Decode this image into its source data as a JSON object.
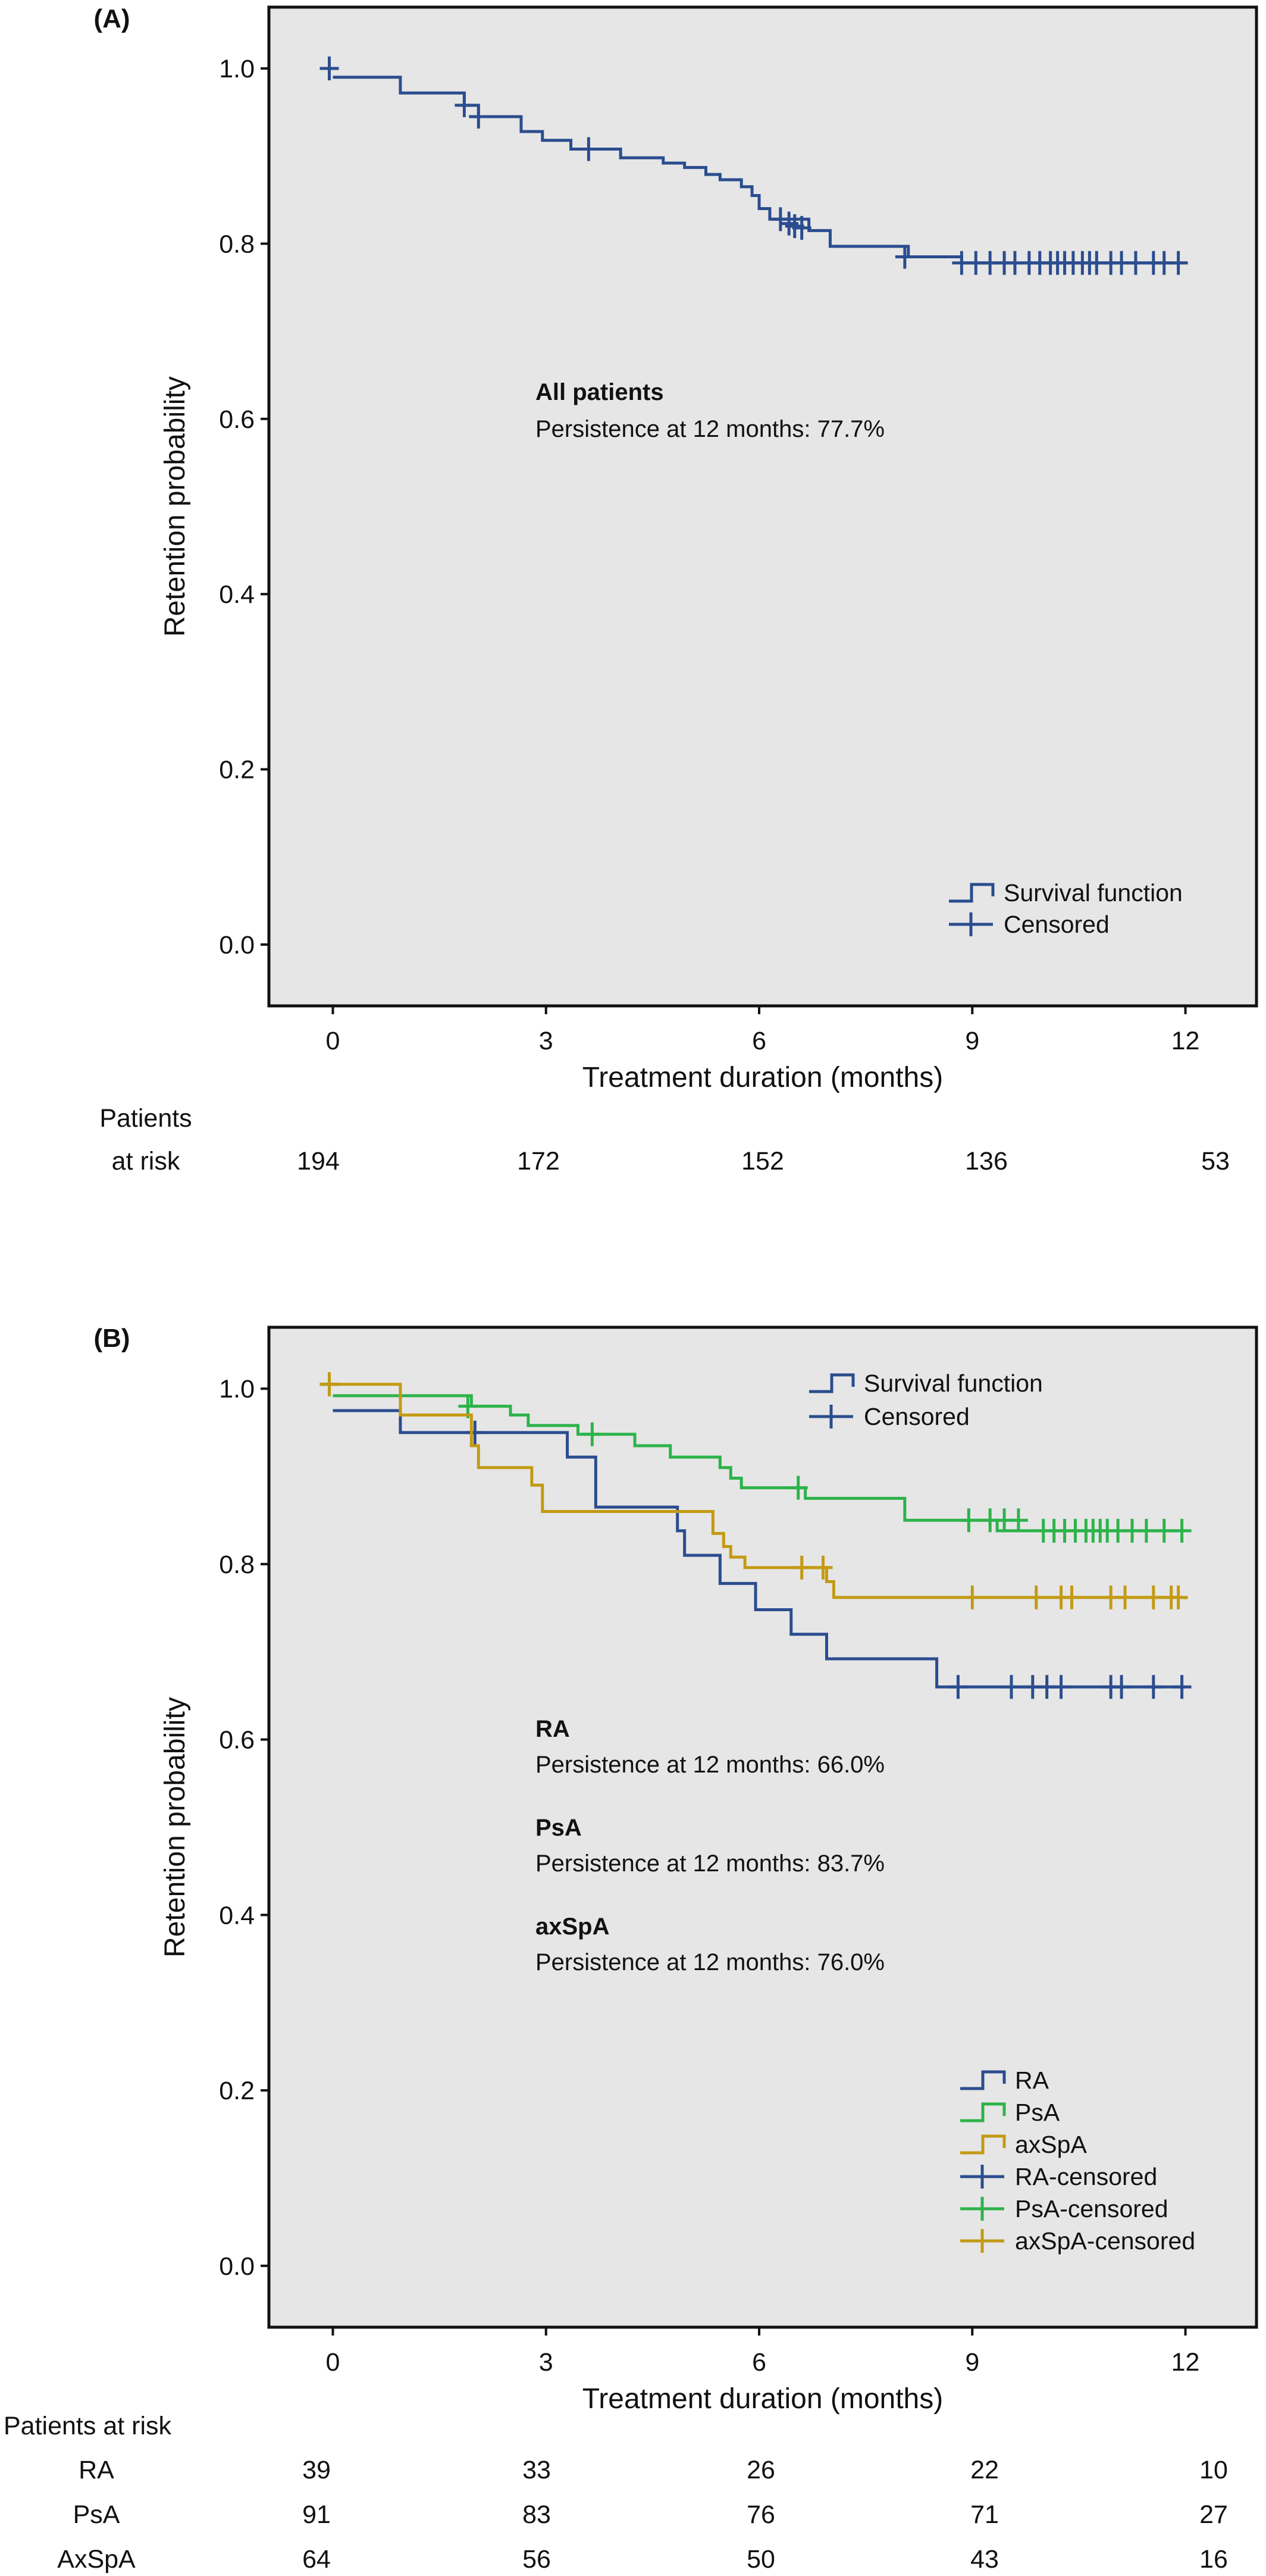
{
  "chart_data": [
    {
      "panel_label": "(A)",
      "type": "line",
      "xlabel": "Treatment duration (months)",
      "ylabel": "Retention probability",
      "xlim": [
        -0.9,
        13.0
      ],
      "ylim": [
        -0.07,
        1.07
      ],
      "xticks": [
        0,
        3,
        6,
        9,
        12
      ],
      "yticks": [
        "0.0",
        "0.2",
        "0.4",
        "0.6",
        "0.8",
        "1.0"
      ],
      "grid": false,
      "legend_position": "bottom-right",
      "legend": [
        {
          "label": "Survival function",
          "kind": "step",
          "color": "#2b4d8f"
        },
        {
          "label": "Censored",
          "kind": "plus",
          "color": "#2b4d8f"
        }
      ],
      "annotation": {
        "title": "All patients",
        "text": "Persistence at 12 months: 77.7%"
      },
      "series": [
        {
          "color": "#2b4d8f",
          "steps": [
            [
              0,
              0.99
            ],
            [
              0.95,
              0.972
            ],
            [
              1.85,
              0.958
            ],
            [
              2.05,
              0.945
            ],
            [
              2.65,
              0.928
            ],
            [
              2.95,
              0.918
            ],
            [
              3.35,
              0.908
            ],
            [
              4.05,
              0.898
            ],
            [
              4.65,
              0.892
            ],
            [
              4.95,
              0.887
            ],
            [
              5.25,
              0.879
            ],
            [
              5.45,
              0.873
            ],
            [
              5.75,
              0.865
            ],
            [
              5.9,
              0.855
            ],
            [
              6.0,
              0.84
            ],
            [
              6.15,
              0.828
            ],
            [
              6.7,
              0.815
            ],
            [
              7.0,
              0.797
            ],
            [
              8.1,
              0.785
            ],
            [
              8.85,
              0.778
            ],
            [
              12.0,
              0.777
            ]
          ],
          "censored": [
            [
              -0.05,
              1.0
            ],
            [
              1.85,
              0.958
            ],
            [
              2.05,
              0.945
            ],
            [
              3.6,
              0.908
            ],
            [
              6.3,
              0.828
            ],
            [
              6.42,
              0.823
            ],
            [
              6.5,
              0.82
            ],
            [
              6.6,
              0.818
            ],
            [
              8.05,
              0.785
            ],
            [
              8.85,
              0.778
            ],
            [
              9.05,
              0.778
            ],
            [
              9.25,
              0.778
            ],
            [
              9.45,
              0.778
            ],
            [
              9.6,
              0.778
            ],
            [
              9.8,
              0.778
            ],
            [
              9.95,
              0.778
            ],
            [
              10.1,
              0.778
            ],
            [
              10.2,
              0.778
            ],
            [
              10.3,
              0.778
            ],
            [
              10.42,
              0.778
            ],
            [
              10.55,
              0.778
            ],
            [
              10.65,
              0.778
            ],
            [
              10.75,
              0.778
            ],
            [
              10.95,
              0.778
            ],
            [
              11.1,
              0.778
            ],
            [
              11.3,
              0.778
            ],
            [
              11.55,
              0.778
            ],
            [
              11.7,
              0.778
            ],
            [
              11.9,
              0.778
            ]
          ]
        }
      ],
      "at_risk": {
        "header": [
          "Patients",
          "at risk"
        ],
        "rows": [
          {
            "label": "",
            "values": [
              "194",
              "172",
              "152",
              "136",
              "53"
            ]
          }
        ]
      }
    },
    {
      "panel_label": "(B)",
      "type": "line",
      "xlabel": "Treatment duration (months)",
      "ylabel": "Retention probability",
      "xlim": [
        -0.9,
        13.0
      ],
      "ylim": [
        -0.07,
        1.07
      ],
      "xticks": [
        0,
        3,
        6,
        9,
        12
      ],
      "yticks": [
        "0.0",
        "0.2",
        "0.4",
        "0.6",
        "0.8",
        "1.0"
      ],
      "grid": false,
      "legend_top": [
        {
          "label": "Survival function",
          "kind": "step",
          "color": "#2b4d8f"
        },
        {
          "label": "Censored",
          "kind": "plus",
          "color": "#2b4d8f"
        }
      ],
      "legend": [
        {
          "label": "RA",
          "kind": "step",
          "color": "#2b4d8f"
        },
        {
          "label": "PsA",
          "kind": "step",
          "color": "#2db34a"
        },
        {
          "label": "axSpA",
          "kind": "step",
          "color": "#c39a12"
        },
        {
          "label": "RA-censored",
          "kind": "plus",
          "color": "#2b4d8f"
        },
        {
          "label": "PsA-censored",
          "kind": "plus",
          "color": "#2db34a"
        },
        {
          "label": "axSpA-censored",
          "kind": "plus",
          "color": "#c39a12"
        }
      ],
      "annotations": [
        {
          "title": "RA",
          "text": "Persistence at 12 months: 66.0%"
        },
        {
          "title": "PsA",
          "text": "Persistence at 12 months: 83.7%"
        },
        {
          "title": "axSpA",
          "text": "Persistence at 12 months: 76.0%"
        }
      ],
      "series": [
        {
          "name": "RA",
          "color": "#2b4d8f",
          "steps": [
            [
              0,
              0.975
            ],
            [
              0.95,
              0.95
            ],
            [
              2.0,
              0.95
            ],
            [
              3.3,
              0.922
            ],
            [
              3.7,
              0.865
            ],
            [
              4.85,
              0.838
            ],
            [
              4.95,
              0.81
            ],
            [
              5.45,
              0.778
            ],
            [
              5.95,
              0.748
            ],
            [
              6.45,
              0.72
            ],
            [
              6.95,
              0.692
            ],
            [
              8.5,
              0.66
            ],
            [
              12.0,
              0.66
            ]
          ],
          "censored": [
            [
              -0.05,
              1.005
            ],
            [
              2.0,
              0.95
            ],
            [
              8.8,
              0.66
            ],
            [
              9.55,
              0.66
            ],
            [
              9.85,
              0.66
            ],
            [
              10.05,
              0.66
            ],
            [
              10.25,
              0.66
            ],
            [
              10.95,
              0.66
            ],
            [
              11.1,
              0.66
            ],
            [
              11.55,
              0.66
            ],
            [
              11.95,
              0.66
            ]
          ]
        },
        {
          "name": "PsA",
          "color": "#2db34a",
          "steps": [
            [
              0,
              0.992
            ],
            [
              1.95,
              0.98
            ],
            [
              2.5,
              0.97
            ],
            [
              2.75,
              0.958
            ],
            [
              3.45,
              0.948
            ],
            [
              4.25,
              0.935
            ],
            [
              4.75,
              0.922
            ],
            [
              5.45,
              0.91
            ],
            [
              5.6,
              0.898
            ],
            [
              5.75,
              0.887
            ],
            [
              6.65,
              0.875
            ],
            [
              8.05,
              0.85
            ],
            [
              9.35,
              0.838
            ],
            [
              12.0,
              0.837
            ]
          ],
          "censored": [
            [
              -0.05,
              1.005
            ],
            [
              1.9,
              0.98
            ],
            [
              3.65,
              0.948
            ],
            [
              6.55,
              0.887
            ],
            [
              8.95,
              0.85
            ],
            [
              9.25,
              0.85
            ],
            [
              9.45,
              0.85
            ],
            [
              9.65,
              0.85
            ],
            [
              10.0,
              0.838
            ],
            [
              10.15,
              0.838
            ],
            [
              10.3,
              0.838
            ],
            [
              10.45,
              0.838
            ],
            [
              10.6,
              0.838
            ],
            [
              10.7,
              0.838
            ],
            [
              10.8,
              0.838
            ],
            [
              10.9,
              0.838
            ],
            [
              11.05,
              0.838
            ],
            [
              11.25,
              0.838
            ],
            [
              11.45,
              0.838
            ],
            [
              11.7,
              0.838
            ],
            [
              11.95,
              0.838
            ]
          ]
        },
        {
          "name": "axSpA",
          "color": "#c39a12",
          "steps": [
            [
              0,
              1.005
            ],
            [
              0.95,
              0.97
            ],
            [
              1.95,
              0.935
            ],
            [
              2.05,
              0.91
            ],
            [
              2.8,
              0.89
            ],
            [
              2.95,
              0.86
            ],
            [
              5.35,
              0.835
            ],
            [
              5.5,
              0.82
            ],
            [
              5.6,
              0.808
            ],
            [
              5.8,
              0.796
            ],
            [
              6.95,
              0.78
            ],
            [
              7.05,
              0.762
            ],
            [
              12.0,
              0.76
            ]
          ],
          "censored": [
            [
              -0.05,
              1.005
            ],
            [
              6.6,
              0.796
            ],
            [
              6.9,
              0.796
            ],
            [
              9.0,
              0.762
            ],
            [
              9.9,
              0.762
            ],
            [
              10.25,
              0.762
            ],
            [
              10.4,
              0.762
            ],
            [
              10.95,
              0.762
            ],
            [
              11.15,
              0.762
            ],
            [
              11.55,
              0.762
            ],
            [
              11.8,
              0.762
            ],
            [
              11.9,
              0.762
            ]
          ]
        }
      ],
      "at_risk": {
        "header": [
          "Patients at risk"
        ],
        "rows": [
          {
            "label": "RA",
            "values": [
              "39",
              "33",
              "26",
              "22",
              "10"
            ]
          },
          {
            "label": "PsA",
            "values": [
              "91",
              "83",
              "76",
              "71",
              "27"
            ]
          },
          {
            "label": "AxSpA",
            "values": [
              "64",
              "56",
              "50",
              "43",
              "16"
            ]
          }
        ]
      }
    }
  ]
}
